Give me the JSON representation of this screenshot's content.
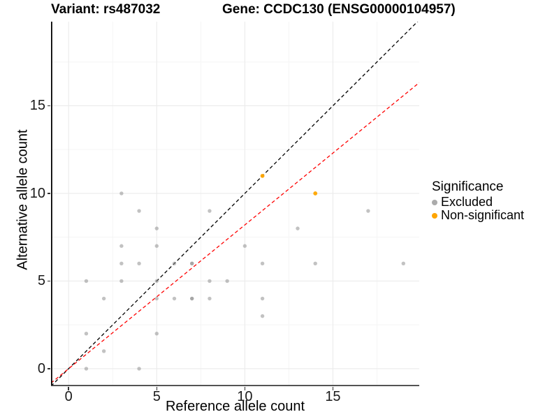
{
  "header": {
    "variant_title": "Variant: rs487032",
    "gene_title": "Gene: CCDC130 (ENSG00000104957)"
  },
  "chart_data": {
    "type": "scatter",
    "xlabel": "Reference allele count",
    "ylabel": "Alternative allele count",
    "x_ticks": [
      0,
      5,
      10,
      15
    ],
    "y_ticks": [
      0,
      5,
      10,
      15
    ],
    "x_minor": [
      2.5,
      7.5,
      12.5,
      17.5
    ],
    "y_minor": [
      2.5,
      7.5,
      12.5,
      17.5
    ],
    "x_range": [
      -1,
      19.9
    ],
    "y_range": [
      -1,
      19.8
    ],
    "grid": true,
    "legend_position": "right",
    "colors": {
      "excluded": "#ABABAB",
      "non_significant": "#FFA500",
      "identity_line": "#000000",
      "regression_line": "#FF0000",
      "major_grid": "#EBEBEB",
      "minor_grid": "#F5F5F5"
    },
    "series": [
      {
        "name": "Excluded",
        "color": "#8F8F8F",
        "opacity": 0.55,
        "radius": 2.7,
        "points": [
          [
            1,
            0
          ],
          [
            4,
            0
          ],
          [
            2,
            1
          ],
          [
            1,
            2
          ],
          [
            5,
            2
          ],
          [
            11,
            3
          ],
          [
            2,
            4
          ],
          [
            5,
            4
          ],
          [
            6,
            4
          ],
          [
            7,
            4
          ],
          [
            7,
            4
          ],
          [
            8,
            4
          ],
          [
            11,
            4
          ],
          [
            1,
            5
          ],
          [
            3,
            5
          ],
          [
            5,
            5
          ],
          [
            8,
            5
          ],
          [
            9,
            5
          ],
          [
            3,
            6
          ],
          [
            4,
            6
          ],
          [
            6,
            6
          ],
          [
            7,
            6
          ],
          [
            7,
            6
          ],
          [
            11,
            6
          ],
          [
            14,
            6
          ],
          [
            19,
            6
          ],
          [
            3,
            7
          ],
          [
            5,
            7
          ],
          [
            10,
            7
          ],
          [
            5,
            8
          ],
          [
            13,
            8
          ],
          [
            4,
            9
          ],
          [
            8,
            9
          ],
          [
            17,
            9
          ],
          [
            3,
            10
          ]
        ]
      },
      {
        "name": "Non-significant",
        "color": "#FFA500",
        "opacity": 0.95,
        "radius": 2.9,
        "points": [
          [
            11,
            11
          ],
          [
            14,
            10
          ]
        ]
      }
    ],
    "lines": [
      {
        "name": "identity-line",
        "color": "#000000",
        "from": [
          -1,
          -1
        ],
        "to": [
          19.9,
          19.9
        ]
      },
      {
        "name": "regression-line",
        "color": "#FF0000",
        "from": [
          -1,
          -0.82
        ],
        "to": [
          19.9,
          16.32
        ]
      }
    ],
    "legend": {
      "title": "Significance",
      "items": [
        {
          "label": "Excluded",
          "color": "#ABABAB"
        },
        {
          "label": "Non-significant",
          "color": "#FFA500"
        }
      ]
    }
  }
}
